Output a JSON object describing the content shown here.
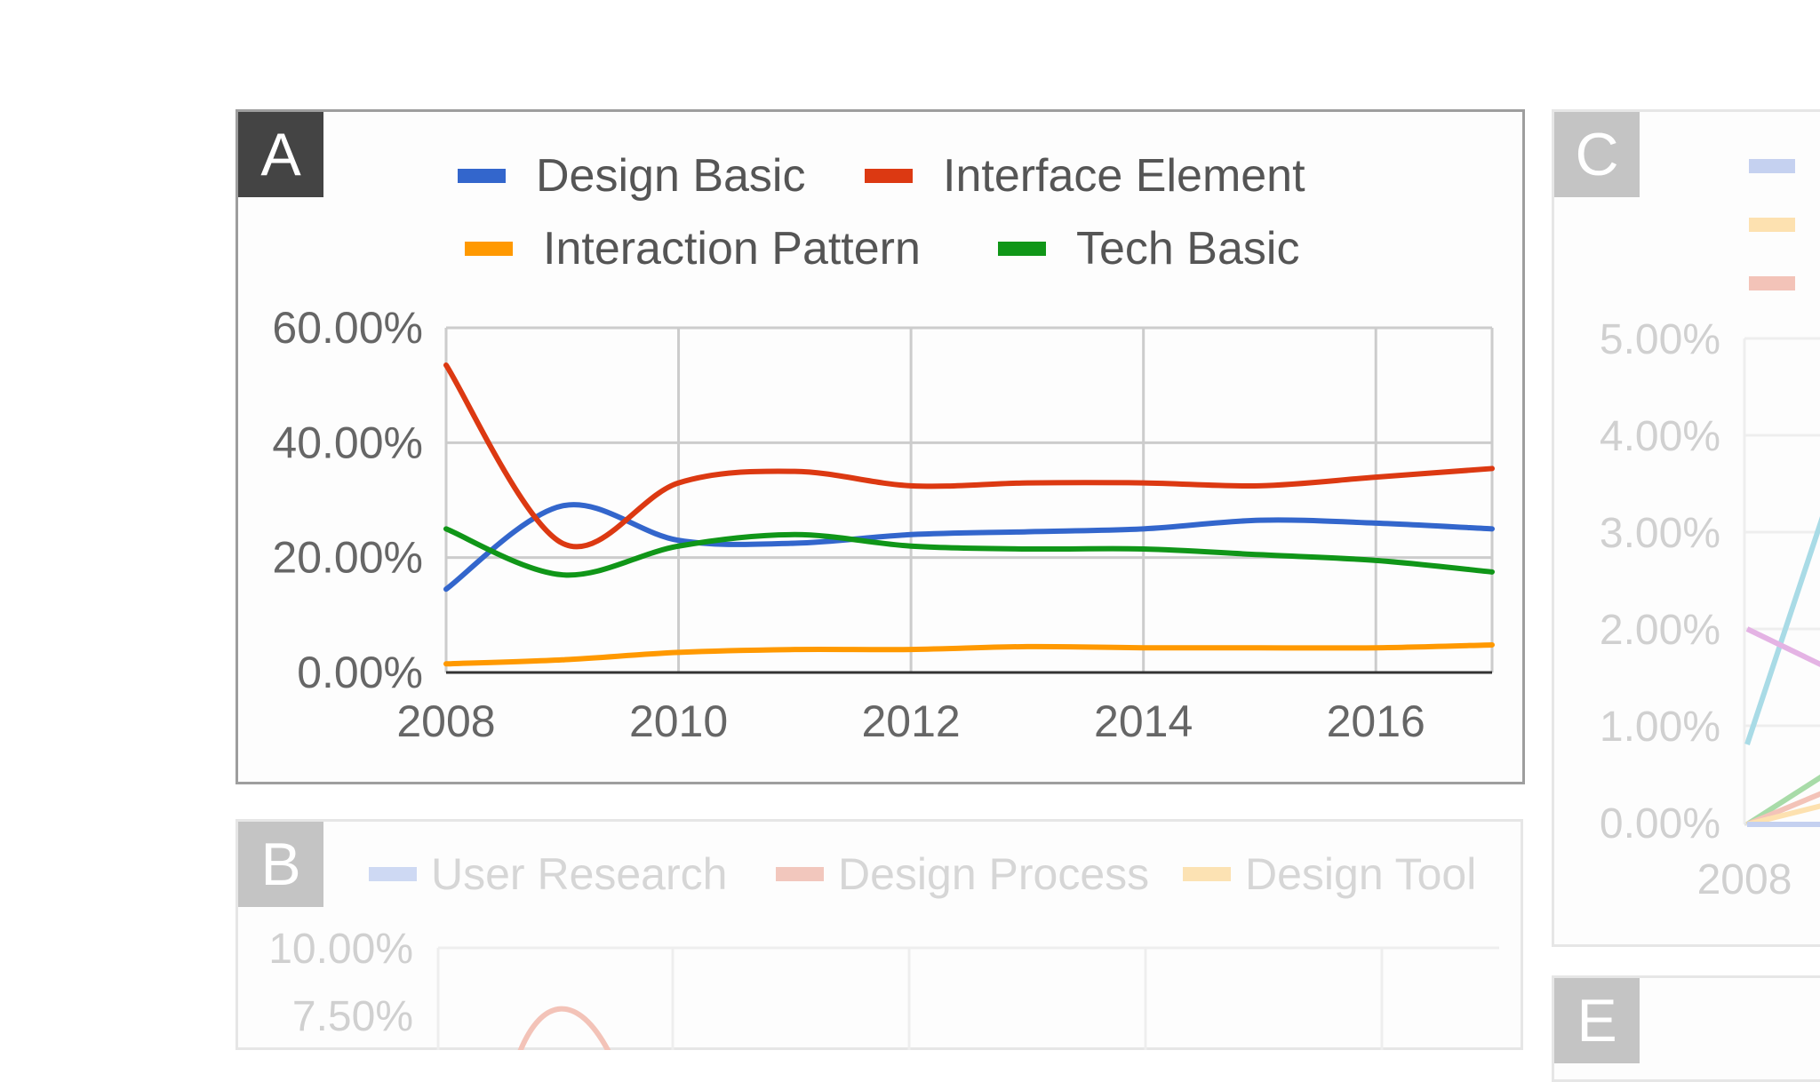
{
  "panels": {
    "A": {
      "label": "A",
      "legend": [
        {
          "name": "Design Basic",
          "color": "#3366cc"
        },
        {
          "name": "Interface Element",
          "color": "#dc3912"
        },
        {
          "name": "Interaction Pattern",
          "color": "#ff9900"
        },
        {
          "name": "Tech Basic",
          "color": "#109618"
        }
      ]
    },
    "B": {
      "label": "B",
      "legend": [
        {
          "name": "User Research",
          "color": "#c5d1f0"
        },
        {
          "name": "Design Process",
          "color": "#f3c3b8"
        },
        {
          "name": "Design Tool",
          "color": "#fde1b0"
        }
      ],
      "y_ticks": [
        "10.00%",
        "7.50%"
      ]
    },
    "C": {
      "label": "C",
      "legend_colors": [
        "#c5d1f0",
        "#fde1b0",
        "#f3c3b8"
      ],
      "y_ticks": [
        "5.00%",
        "4.00%",
        "3.00%",
        "2.00%",
        "1.00%",
        "0.00%"
      ],
      "x_ticks": [
        "2008"
      ]
    },
    "E": {
      "label": "E"
    }
  },
  "chart_data": [
    {
      "type": "line",
      "x": [
        2008,
        2009,
        2010,
        2011,
        2012,
        2013,
        2014,
        2015,
        2016,
        2017
      ],
      "series": [
        {
          "name": "Design Basic",
          "color": "#3366cc",
          "values": [
            14.5,
            29.0,
            23.0,
            22.5,
            24.0,
            24.5,
            25.0,
            26.5,
            26.0,
            25.0
          ]
        },
        {
          "name": "Interface Element",
          "color": "#dc3912",
          "values": [
            53.5,
            22.5,
            33.0,
            35.0,
            32.5,
            33.0,
            33.0,
            32.5,
            34.0,
            35.5
          ]
        },
        {
          "name": "Interaction Pattern",
          "color": "#ff9900",
          "values": [
            1.5,
            2.2,
            3.5,
            4.0,
            4.0,
            4.5,
            4.3,
            4.3,
            4.3,
            4.8
          ]
        },
        {
          "name": "Tech Basic",
          "color": "#109618",
          "values": [
            25.0,
            17.0,
            22.0,
            24.0,
            22.0,
            21.5,
            21.5,
            20.5,
            19.5,
            17.5
          ]
        }
      ],
      "ylim": [
        0,
        60
      ],
      "y_ticks": [
        "0.00%",
        "20.00%",
        "40.00%",
        "60.00%"
      ],
      "x_ticks": [
        "2008",
        "2010",
        "2012",
        "2014",
        "2016"
      ],
      "grid": true,
      "legend_position": "top"
    }
  ]
}
